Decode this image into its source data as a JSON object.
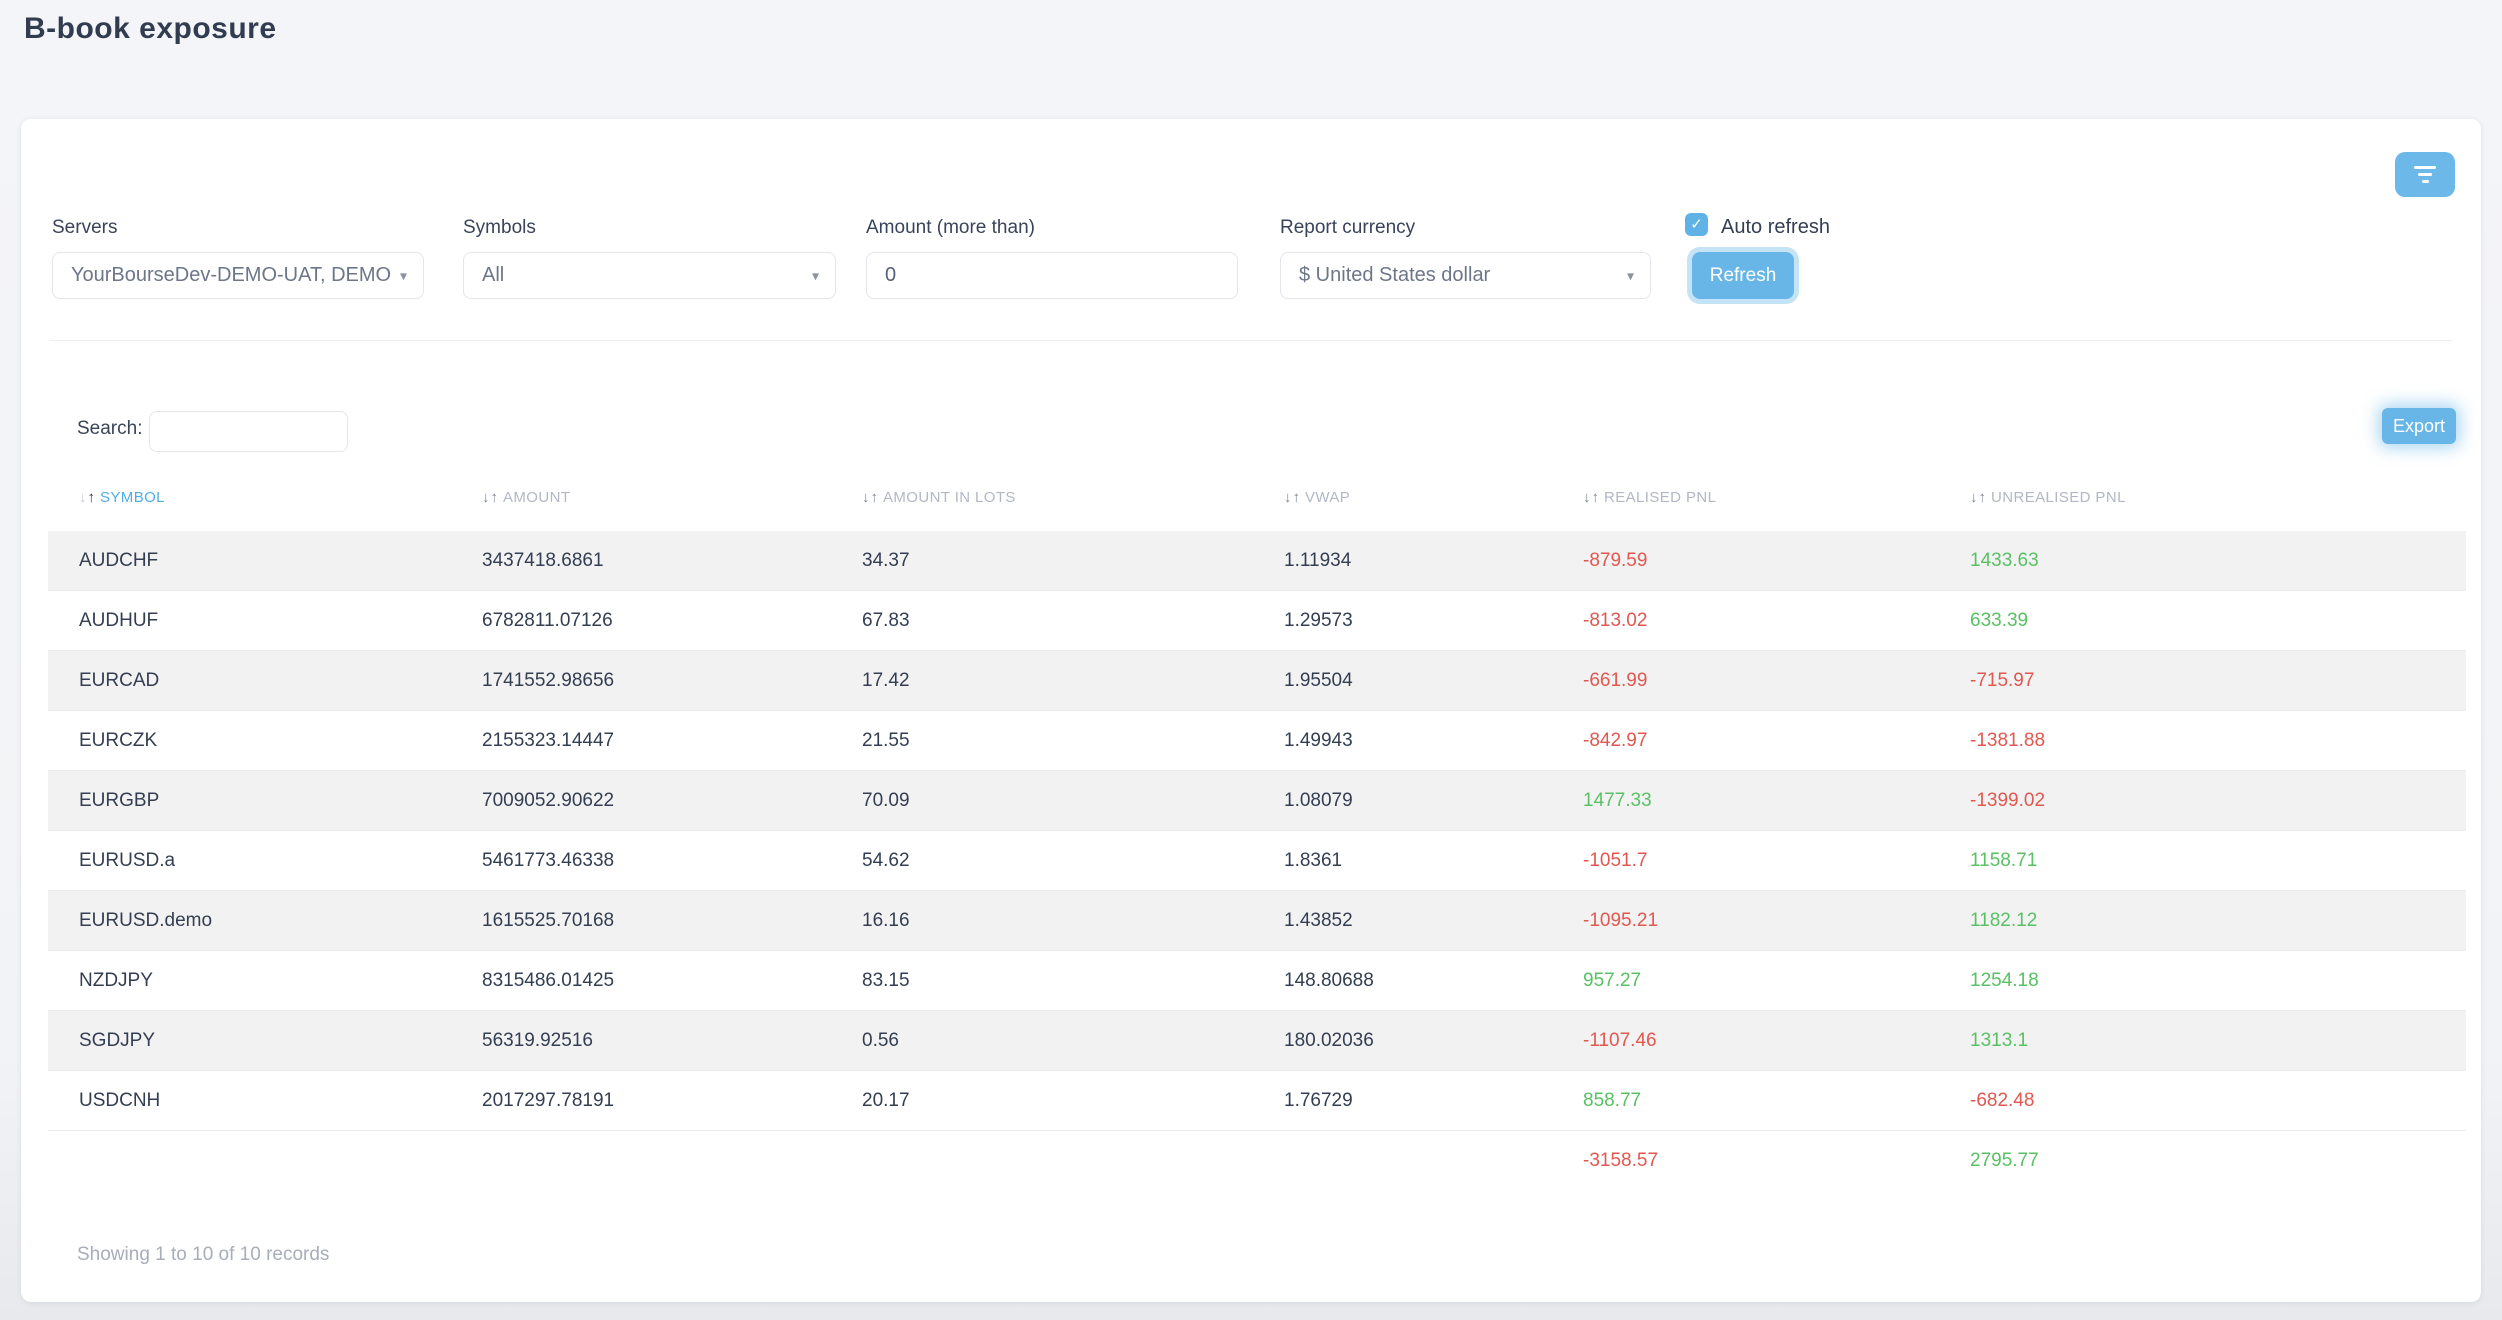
{
  "page": {
    "title": "B-book exposure"
  },
  "filters": {
    "servers": {
      "label": "Servers",
      "value": "YourBourseDev-DEMO-UAT, DEMO"
    },
    "symbols": {
      "label": "Symbols",
      "value": "All"
    },
    "amount": {
      "label": "Amount (more than)",
      "value": "0"
    },
    "report_currency": {
      "label": "Report currency",
      "value": "$ United States dollar"
    },
    "auto_refresh": {
      "label": "Auto refresh",
      "checked": true
    },
    "refresh_button": "Refresh"
  },
  "toolbar": {
    "search_label": "Search:",
    "search_value": "",
    "export_button": "Export"
  },
  "table": {
    "columns": [
      {
        "key": "symbol",
        "label": "SYMBOL",
        "sorted": true
      },
      {
        "key": "amount",
        "label": "AMOUNT",
        "sorted": false
      },
      {
        "key": "amount_in_lots",
        "label": "AMOUNT IN LOTS",
        "sorted": false
      },
      {
        "key": "vwap",
        "label": "VWAP",
        "sorted": false
      },
      {
        "key": "realised_pnl",
        "label": "REALISED PNL",
        "sorted": false
      },
      {
        "key": "unrealised_pnl",
        "label": "UNREALISED PNL",
        "sorted": false
      }
    ],
    "rows": [
      {
        "symbol": "AUDCHF",
        "amount": "3437418.6861",
        "amount_in_lots": "34.37",
        "vwap": "1.11934",
        "realised_pnl": "-879.59",
        "unrealised_pnl": "1433.63"
      },
      {
        "symbol": "AUDHUF",
        "amount": "6782811.07126",
        "amount_in_lots": "67.83",
        "vwap": "1.29573",
        "realised_pnl": "-813.02",
        "unrealised_pnl": "633.39"
      },
      {
        "symbol": "EURCAD",
        "amount": "1741552.98656",
        "amount_in_lots": "17.42",
        "vwap": "1.95504",
        "realised_pnl": "-661.99",
        "unrealised_pnl": "-715.97"
      },
      {
        "symbol": "EURCZK",
        "amount": "2155323.14447",
        "amount_in_lots": "21.55",
        "vwap": "1.49943",
        "realised_pnl": "-842.97",
        "unrealised_pnl": "-1381.88"
      },
      {
        "symbol": "EURGBP",
        "amount": "7009052.90622",
        "amount_in_lots": "70.09",
        "vwap": "1.08079",
        "realised_pnl": "1477.33",
        "unrealised_pnl": "-1399.02"
      },
      {
        "symbol": "EURUSD.a",
        "amount": "5461773.46338",
        "amount_in_lots": "54.62",
        "vwap": "1.8361",
        "realised_pnl": "-1051.7",
        "unrealised_pnl": "1158.71"
      },
      {
        "symbol": "EURUSD.demo",
        "amount": "1615525.70168",
        "amount_in_lots": "16.16",
        "vwap": "1.43852",
        "realised_pnl": "-1095.21",
        "unrealised_pnl": "1182.12"
      },
      {
        "symbol": "NZDJPY",
        "amount": "8315486.01425",
        "amount_in_lots": "83.15",
        "vwap": "148.80688",
        "realised_pnl": "957.27",
        "unrealised_pnl": "1254.18"
      },
      {
        "symbol": "SGDJPY",
        "amount": "56319.92516",
        "amount_in_lots": "0.56",
        "vwap": "180.02036",
        "realised_pnl": "-1107.46",
        "unrealised_pnl": "1313.1"
      },
      {
        "symbol": "USDCNH",
        "amount": "2017297.78191",
        "amount_in_lots": "20.17",
        "vwap": "1.76729",
        "realised_pnl": "858.77",
        "unrealised_pnl": "-682.48"
      }
    ],
    "totals": {
      "realised_pnl": "-3158.57",
      "unrealised_pnl": "2795.77"
    },
    "footer": "Showing 1 to 10 of 10 records"
  },
  "colors": {
    "accent": "#67b6e7",
    "negative": "#e2574f",
    "positive": "#58c163",
    "sorted_header": "#4fade6"
  }
}
